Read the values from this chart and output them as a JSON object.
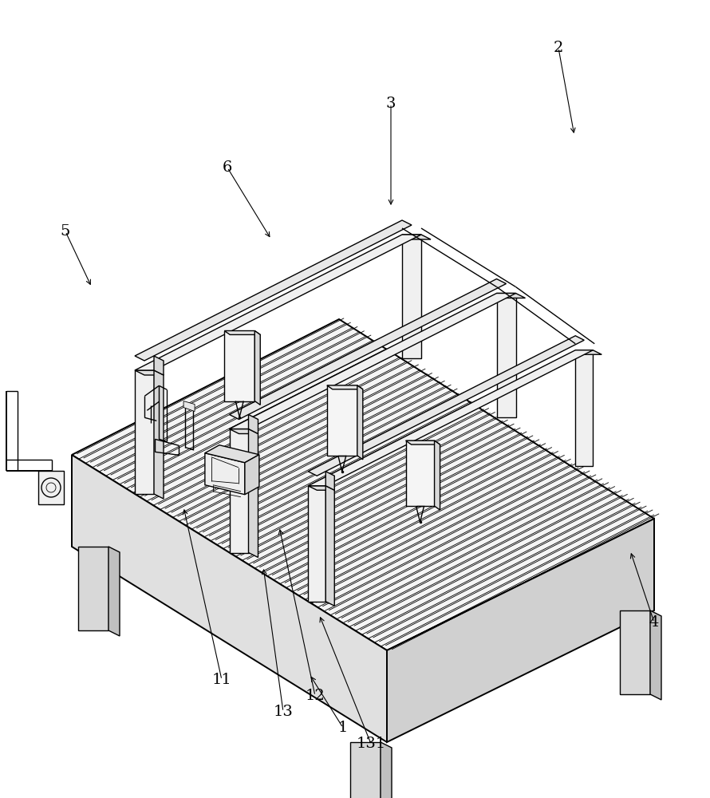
{
  "bg_color": "#ffffff",
  "line_color": "#000000",
  "lw": 1.0,
  "lw_thick": 1.4,
  "lw_thin": 0.6,
  "fig_width": 8.9,
  "fig_height": 10.0
}
